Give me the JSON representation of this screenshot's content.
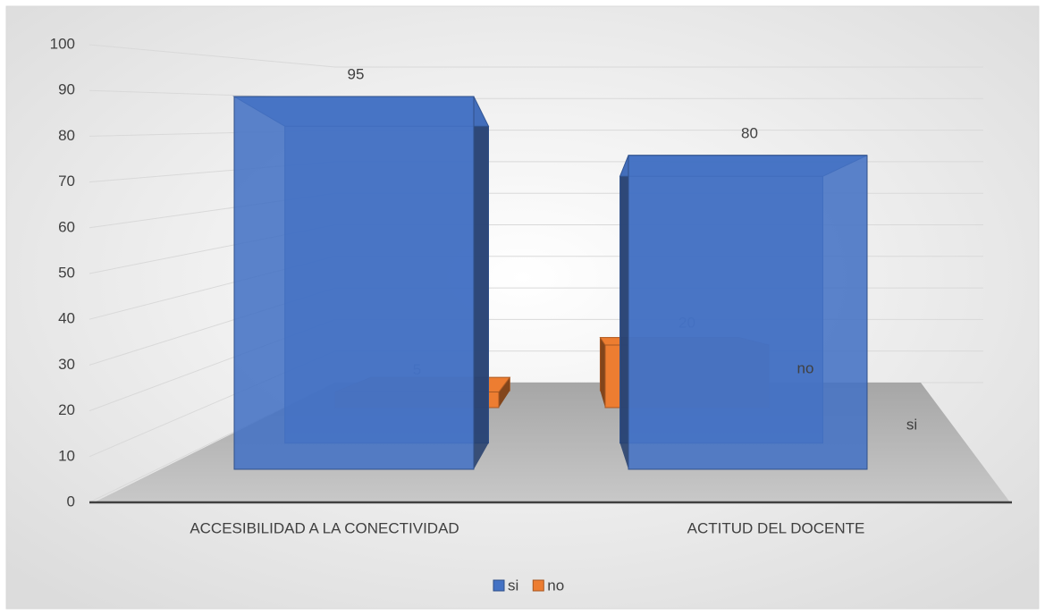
{
  "chart_data": {
    "type": "bar3d",
    "categories": [
      "ACCESIBILIDAD A LA CONECTIVIDAD",
      "ACTITUD DEL DOCENTE"
    ],
    "series": [
      {
        "name": "si",
        "color": "#4472c4",
        "values": [
          95,
          80
        ]
      },
      {
        "name": "no",
        "color": "#ed7d31",
        "values": [
          5,
          20
        ]
      }
    ],
    "ylim": [
      0,
      100
    ],
    "yticks": [
      0,
      10,
      20,
      30,
      40,
      50,
      60,
      70,
      80,
      90,
      100
    ],
    "grid": true,
    "legend": "bottom"
  }
}
